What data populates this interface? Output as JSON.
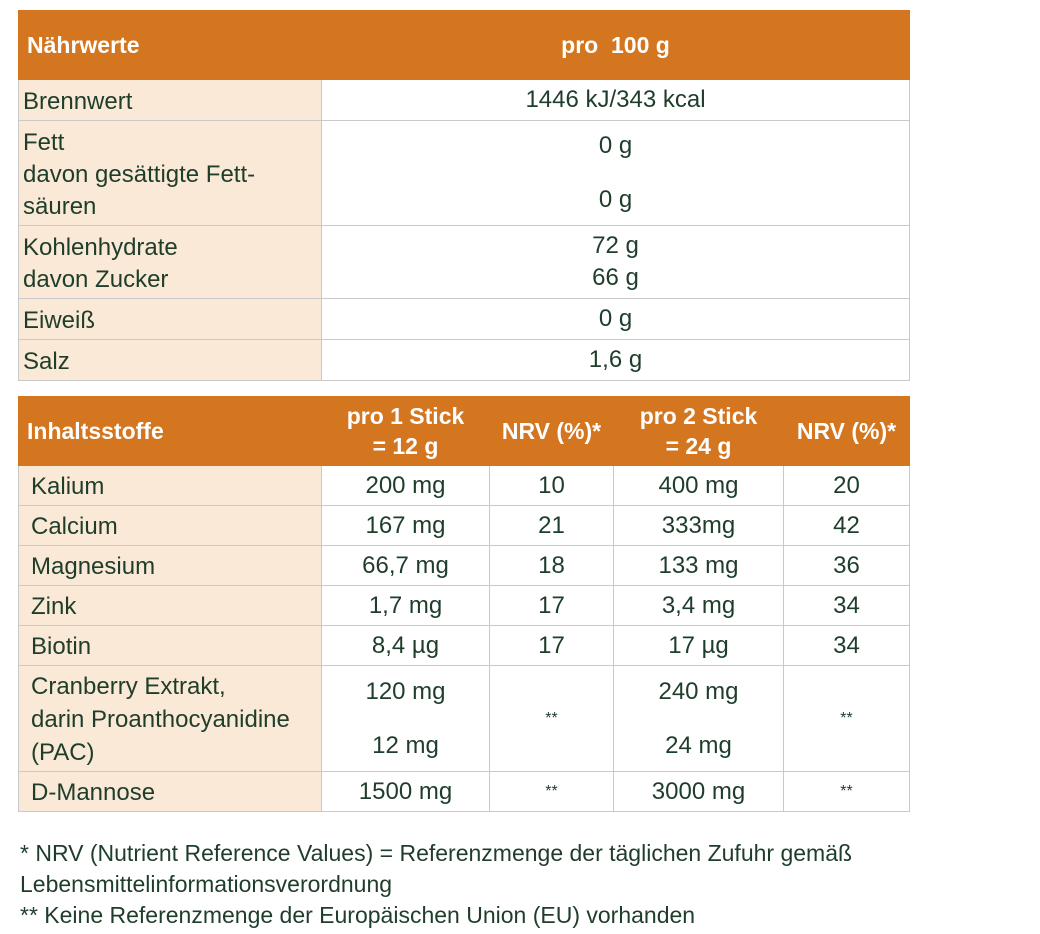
{
  "table1": {
    "header": [
      "Nährwerte",
      "pro  100 g"
    ],
    "rows": [
      {
        "label": [
          "Brennwert"
        ],
        "value": [
          "1446 kJ/343 kcal"
        ]
      },
      {
        "label": [
          "Fett",
          "davon gesättigte Fett-",
          "säuren"
        ],
        "value": [
          "0 g",
          "0 g"
        ]
      },
      {
        "label": [
          "Kohlenhydrate",
          "davon Zucker"
        ],
        "value": [
          "72 g",
          "66 g"
        ]
      },
      {
        "label": [
          "Eiweiß"
        ],
        "value": [
          "0 g"
        ]
      },
      {
        "label": [
          "Salz"
        ],
        "value": [
          "1,6 g"
        ]
      }
    ]
  },
  "table2": {
    "header": [
      "Inhaltsstoffe",
      "pro 1 Stick",
      "= 12 g",
      "NRV (%)*",
      "pro 2 Stick",
      "= 24 g",
      "NRV (%)*"
    ],
    "rows": [
      {
        "label": [
          "Kalium"
        ],
        "s1": [
          "200 mg"
        ],
        "n1": "10",
        "s2": [
          "400 mg"
        ],
        "n2": "20"
      },
      {
        "label": [
          "Calcium"
        ],
        "s1": [
          "167 mg"
        ],
        "n1": "21",
        "s2": [
          "333mg"
        ],
        "n2": "42"
      },
      {
        "label": [
          "Magnesium"
        ],
        "s1": [
          "66,7 mg"
        ],
        "n1": "18",
        "s2": [
          "133 mg"
        ],
        "n2": "36"
      },
      {
        "label": [
          "Zink"
        ],
        "s1": [
          "1,7 mg"
        ],
        "n1": "17",
        "s2": [
          "3,4 mg"
        ],
        "n2": "34"
      },
      {
        "label": [
          "Biotin"
        ],
        "s1": [
          "8,4 µg"
        ],
        "n1": "17",
        "s2": [
          "17 µg"
        ],
        "n2": "34"
      },
      {
        "label": [
          "Cranberry Extrakt,",
          "darin  Proanthocyanidine",
          "(PAC)"
        ],
        "s1": [
          "120 mg",
          "12 mg"
        ],
        "n1": "**",
        "s2": [
          "240 mg",
          "24 mg"
        ],
        "n2": "**"
      },
      {
        "label": [
          "D-Mannose"
        ],
        "s1": [
          "1500 mg"
        ],
        "n1": "**",
        "s2": [
          "3000 mg"
        ],
        "n2": "**"
      }
    ]
  },
  "footnotes": [
    "* NRV (Nutrient Reference Values) = Referenzmenge der täglichen Zufuhr gemäß",
    "Lebensmittelinformationsverordnung",
    "** Keine Referenzmenge der Europäischen Union (EU) vorhanden"
  ]
}
